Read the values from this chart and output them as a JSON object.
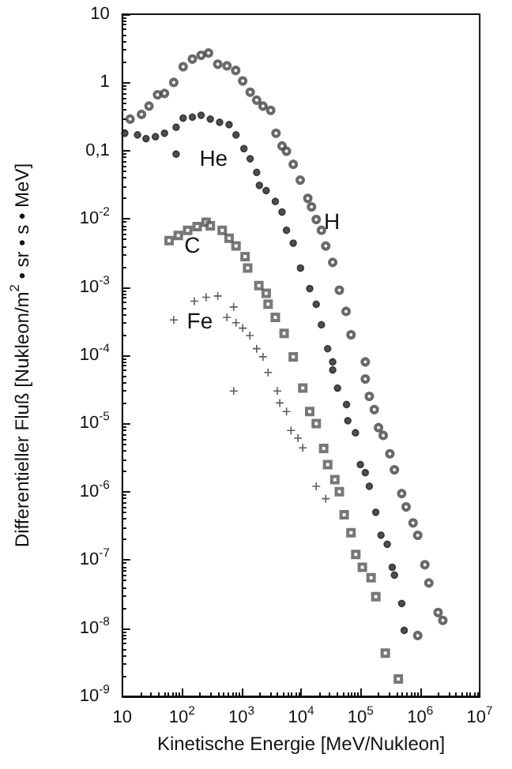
{
  "chart_data": {
    "type": "scatter",
    "xlabel": "Kinetische Energie [MeV/Nukleon]",
    "ylabel": "Differentieller Fluß [Nukleon/m$^{2}$ • sr • s • MeV]",
    "log": "xy",
    "grid": false,
    "legend": false,
    "xlim": [
      10,
      10000000
    ],
    "xticks": [
      10,
      {
        "value": 100,
        "label": "10$^{2}$"
      },
      {
        "value": 1000,
        "label": "10$^{3}$"
      },
      {
        "value": 10000,
        "label": "10$^{4}$"
      },
      {
        "value": 100000,
        "label": "10$^{5}$"
      },
      {
        "value": 1000000,
        "label": "10$^{6}$"
      },
      {
        "value": 10000000,
        "label": "10$^{7}$"
      }
    ],
    "ylim": [
      1e-09,
      10
    ],
    "yticks": [
      {
        "value": 1e-09,
        "label": "10$^{-9}$"
      },
      {
        "value": 1e-08,
        "label": "10$^{-8}$"
      },
      {
        "value": 1e-07,
        "label": "10$^{-7}$"
      },
      {
        "value": 1e-06,
        "label": "10$^{-6}$"
      },
      {
        "value": 1e-05,
        "label": "10$^{-5}$"
      },
      {
        "value": 0.0001,
        "label": "10$^{-4}$"
      },
      {
        "value": 0.001,
        "label": "10$^{-3}$"
      },
      {
        "value": 0.01,
        "label": "10$^{-2}$"
      },
      {
        "value": 0.1,
        "label": "0,1"
      },
      1,
      10
    ],
    "series": [
      {
        "name": "H",
        "color": "#444444",
        "marker": "circle",
        "x": [
          13.5,
          21,
          28,
          39,
          51,
          73,
          105,
          150,
          210,
          280,
          400,
          570,
          800,
          1050,
          1400,
          1800,
          2300,
          3100,
          3800,
          4800,
          5700,
          7400,
          9700,
          13000,
          15000,
          18000,
          22000,
          26000,
          34000,
          44000,
          57000,
          69000,
          120000,
          120000,
          140000,
          170000,
          200000,
          240000,
          310000,
          370000,
          490000,
          580000,
          760000,
          910000,
          910000,
          1200000,
          1400000,
          2000000,
          2400000
        ],
        "values": [
          0.29,
          0.34,
          0.45,
          0.66,
          0.69,
          1.0,
          1.7,
          2.2,
          2.5,
          2.7,
          1.85,
          1.75,
          1.5,
          1.05,
          0.72,
          0.55,
          0.45,
          0.39,
          0.18,
          0.117,
          0.098,
          0.063,
          0.037,
          0.02,
          0.015,
          0.0098,
          0.0068,
          0.004,
          0.0023,
          0.0009,
          0.00044,
          0.0002,
          8e-05,
          4.5e-05,
          2.5e-05,
          1.6e-05,
          8.7e-06,
          6.7e-06,
          3.6e-06,
          2.1e-06,
          9.4e-07,
          6e-07,
          3.5e-07,
          2.3e-07,
          7.8e-09,
          8.5e-08,
          4.6e-08,
          1.7e-08,
          1.3e-08
        ]
      },
      {
        "name": "He",
        "color": "#222222",
        "marker": "circle",
        "x": [
          11,
          18,
          25,
          36,
          51,
          80,
          80,
          105,
          150,
          210,
          300,
          430,
          620,
          810,
          1100,
          1400,
          1800,
          2000,
          2600,
          3700,
          4800,
          5700,
          7400,
          9800,
          14000,
          18000,
          22000,
          28000,
          34000,
          34000,
          41000,
          58000,
          61000,
          82000,
          99000,
          120000,
          140000,
          180000,
          220000,
          280000,
          340000,
          370000,
          490000,
          540000
        ],
        "values": [
          0.18,
          0.17,
          0.15,
          0.16,
          0.18,
          0.22,
          0.089,
          0.3,
          0.31,
          0.33,
          0.29,
          0.26,
          0.24,
          0.17,
          0.107,
          0.076,
          0.048,
          0.031,
          0.026,
          0.018,
          0.0126,
          0.0068,
          0.0044,
          0.0019,
          0.00095,
          0.00056,
          0.00028,
          0.000125,
          8e-05,
          6.1e-05,
          3.3e-05,
          1.9e-05,
          1.1e-05,
          7.3e-06,
          2.5e-06,
          1.9e-06,
          1.2e-06,
          5e-07,
          2.3e-07,
          1.7e-07,
          7.8e-08,
          6e-08,
          2.3e-08,
          9.3e-09
        ]
      },
      {
        "name": "C",
        "color": "#555555",
        "marker": "square",
        "x": [
          61,
          87,
          125,
          180,
          255,
          300,
          475,
          620,
          810,
          1150,
          1270,
          1960,
          2600,
          2800,
          3700,
          5200,
          7400,
          10700,
          14000,
          18000,
          24000,
          28000,
          37000,
          44000,
          53000,
          69000,
          83000,
          107000,
          150000,
          180000,
          260000,
          430000
        ],
        "values": [
          0.0048,
          0.0057,
          0.0068,
          0.0077,
          0.0089,
          0.0079,
          0.0068,
          0.0052,
          0.004,
          0.0028,
          0.0019,
          0.00105,
          0.00081,
          0.00056,
          0.00036,
          0.00021,
          9.5e-05,
          3.3e-05,
          1.5e-05,
          1e-05,
          4.3e-06,
          2.5e-06,
          1.5e-06,
          1e-06,
          4.6e-07,
          2.5e-07,
          1.2e-07,
          7.8e-08,
          5.5e-08,
          2.9e-08,
          4.3e-09,
          1.8e-09
        ]
      },
      {
        "name": "Fe",
        "color": "#333333",
        "marker": "cross",
        "x": [
          73,
          162,
          255,
          400,
          570,
          740,
          810,
          1050,
          1380,
          1800,
          2300,
          2800,
          740,
          4000,
          4400,
          5700,
          6800,
          8900,
          10700,
          18000,
          26000
        ],
        "values": [
          0.00033,
          0.00062,
          0.00071,
          0.00074,
          0.00036,
          0.00051,
          0.0003,
          0.00025,
          0.000195,
          0.000125,
          9.5e-05,
          5.6e-05,
          3e-05,
          3e-05,
          2e-05,
          1.5e-05,
          7.9e-06,
          6.1e-06,
          4.4e-06,
          1.2e-06,
          7.9e-07
        ]
      }
    ]
  }
}
